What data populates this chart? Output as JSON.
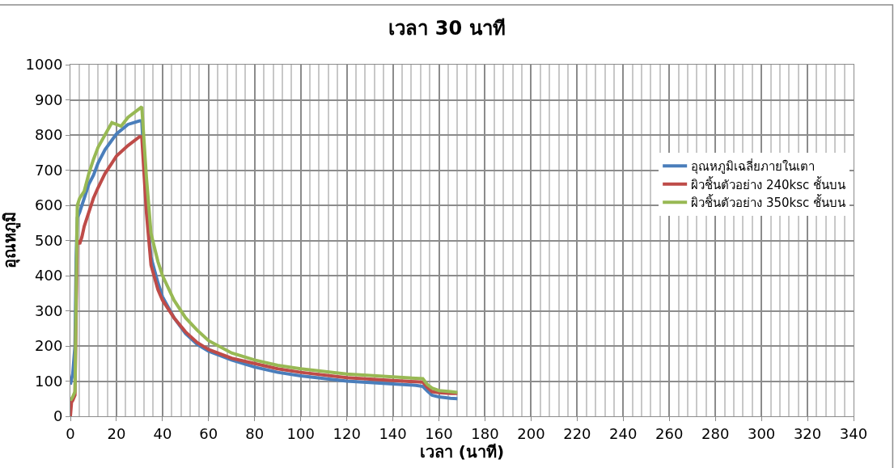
{
  "chart_data": {
    "type": "line",
    "title": "เวลา 30 นาที",
    "xlabel": "เวลา (นาที)",
    "ylabel": "อุณหภูมิ",
    "xlim": [
      0,
      340
    ],
    "xticks": [
      0,
      20,
      40,
      60,
      80,
      100,
      120,
      140,
      160,
      180,
      200,
      220,
      240,
      260,
      280,
      300,
      320,
      340
    ],
    "ylim": [
      0,
      1000
    ],
    "yticks": [
      0,
      100,
      200,
      300,
      400,
      500,
      600,
      700,
      800,
      900,
      1000
    ],
    "grid": true,
    "legend": "right",
    "marker": "none",
    "line_style": "solid",
    "series": [
      {
        "name": "อุณหภูมิเฉลี่ยภายในเตา",
        "color": "#4a7ebb",
        "x": [
          0,
          1,
          2,
          2.5,
          3,
          4,
          6,
          8,
          10,
          12,
          15,
          18,
          20,
          25,
          30,
          31,
          33,
          35,
          38,
          40,
          45,
          50,
          55,
          60,
          70,
          80,
          90,
          100,
          120,
          140,
          150,
          153,
          155,
          157,
          160,
          165,
          168
        ],
        "values": [
          90,
          120,
          200,
          450,
          565,
          580,
          620,
          660,
          685,
          720,
          758,
          785,
          803,
          830,
          840,
          840,
          600,
          452,
          380,
          340,
          280,
          235,
          205,
          185,
          160,
          140,
          125,
          115,
          100,
          92,
          88,
          85,
          72,
          60,
          55,
          51,
          50
        ]
      },
      {
        "name": "ผิวชิ้นตัวอย่าง 240ksc ชั้นบน",
        "color": "#be4b48",
        "x": [
          0,
          0.5,
          1,
          2,
          2.5,
          3,
          4,
          5,
          6,
          8,
          10,
          12,
          15,
          18,
          20,
          25,
          30,
          31,
          33,
          35,
          38,
          40,
          45,
          50,
          55,
          60,
          70,
          80,
          90,
          100,
          120,
          140,
          150,
          153,
          155,
          157,
          160,
          165,
          168
        ],
        "values": [
          0,
          40,
          45,
          60,
          300,
          500,
          490,
          510,
          540,
          580,
          620,
          650,
          690,
          720,
          740,
          770,
          795,
          795,
          580,
          430,
          360,
          330,
          280,
          240,
          210,
          190,
          165,
          150,
          135,
          125,
          110,
          102,
          98,
          97,
          82,
          70,
          67,
          65,
          65
        ]
      },
      {
        "name": "ผิวชิ้นตัวอย่าง 350ksc ชั้นบน",
        "color": "#98b954",
        "x": [
          0,
          1,
          2,
          2.5,
          3,
          4,
          6,
          8,
          10,
          12,
          15,
          18,
          20,
          22,
          25,
          30,
          31,
          33,
          35,
          38,
          40,
          45,
          50,
          55,
          60,
          70,
          80,
          90,
          100,
          120,
          140,
          150,
          153,
          155,
          157,
          160,
          165,
          168
        ],
        "values": [
          45,
          55,
          70,
          350,
          600,
          620,
          640,
          690,
          730,
          765,
          800,
          835,
          830,
          825,
          850,
          875,
          880,
          680,
          520,
          440,
          400,
          330,
          280,
          245,
          215,
          180,
          160,
          145,
          135,
          120,
          112,
          108,
          107,
          90,
          80,
          73,
          70,
          68
        ]
      }
    ]
  }
}
